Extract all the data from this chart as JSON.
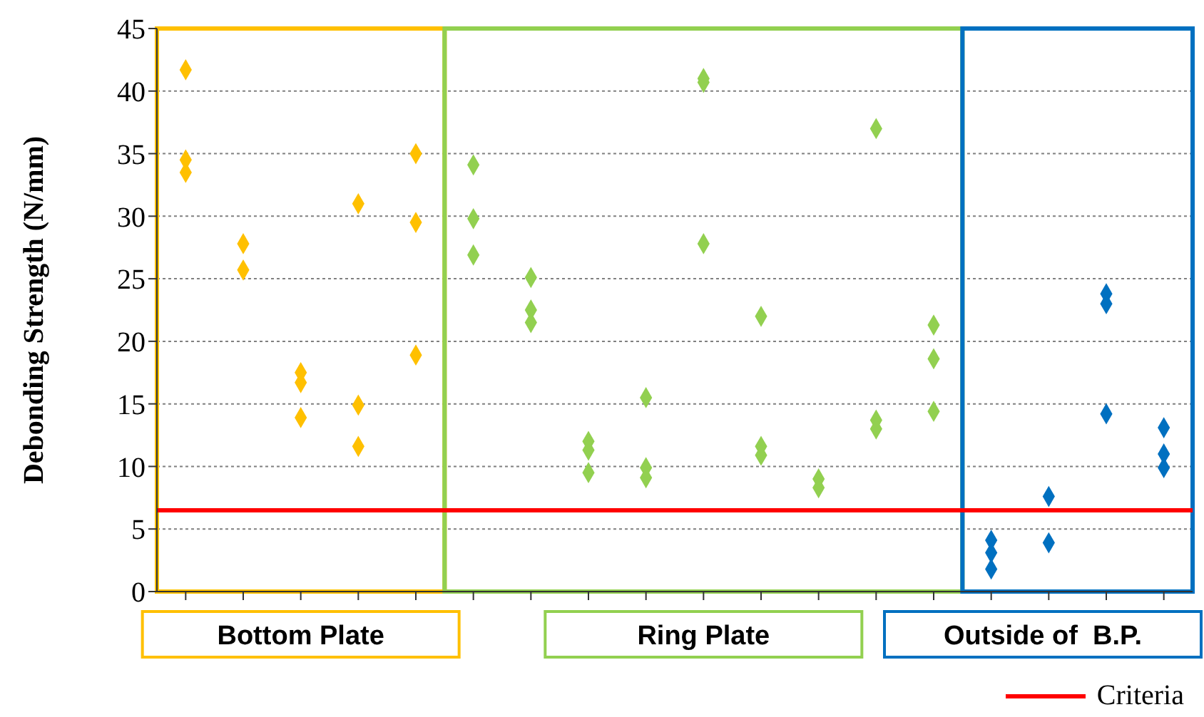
{
  "chart_data": {
    "type": "scatter",
    "ylabel": "Debonding Strength (N/mm)",
    "categories": [
      null,
      null,
      null,
      null,
      null,
      null,
      null,
      null,
      null,
      null,
      null,
      null,
      null,
      null,
      null,
      null,
      null,
      null
    ],
    "ylim": [
      0,
      45
    ],
    "yticks": [
      0,
      5,
      10,
      15,
      20,
      25,
      30,
      35,
      40,
      45
    ],
    "grid": "y",
    "marker": "diamond",
    "series": [
      {
        "colors": [
          "#ffc000",
          "#ffc000",
          "#ffc000",
          "#ffc000",
          "#ffc000",
          "#92d050",
          "#92d050",
          "#92d050",
          "#92d050",
          "#92d050",
          "#92d050",
          "#92d050",
          "#92d050",
          "#92d050",
          "#0070c0",
          "#0070c0",
          "#0070c0",
          "#0070c0"
        ],
        "values": [
          41.7,
          27.8,
          17.5,
          31.0,
          35.0,
          34.1,
          25.1,
          12.0,
          15.5,
          41.0,
          22.0,
          9.0,
          37.0,
          21.3,
          4.1,
          7.6,
          23.8,
          13.1
        ]
      },
      {
        "colors": [
          "#ffc000",
          "#ffc000",
          "#ffc000",
          "#ffc000",
          "#ffc000",
          "#92d050",
          "#92d050",
          "#92d050",
          "#92d050",
          "#92d050",
          "#92d050",
          "#92d050",
          "#92d050",
          "#92d050",
          "#0070c0",
          "#0070c0",
          "#0070c0",
          "#0070c0"
        ],
        "values": [
          34.5,
          25.7,
          16.7,
          14.9,
          29.5,
          29.8,
          22.5,
          11.3,
          9.9,
          40.7,
          11.6,
          8.3,
          13.7,
          18.6,
          3.1,
          3.9,
          23.0,
          11.0
        ]
      },
      {
        "colors": [
          "#ffc000",
          "#ffc000",
          "#ffc000",
          "#ffc000",
          "#ffc000",
          "#92d050",
          "#92d050",
          "#92d050",
          "#92d050",
          "#92d050",
          "#92d050",
          "#92d050",
          "#92d050",
          "#92d050",
          "#0070c0",
          "#0070c0",
          "#0070c0",
          "#0070c0"
        ],
        "values": [
          33.5,
          null,
          13.9,
          11.6,
          18.9,
          26.9,
          21.5,
          9.5,
          9.1,
          27.8,
          10.9,
          null,
          13.0,
          14.4,
          1.8,
          null,
          14.2,
          9.9
        ]
      }
    ],
    "ref_lines": [
      {
        "axis": "y",
        "value": 6.5,
        "label": "Criteria",
        "color": "#ff0000"
      }
    ],
    "annotations": [
      "Bottom Plate",
      "Ring Plate",
      "Outside of  B.P."
    ]
  }
}
